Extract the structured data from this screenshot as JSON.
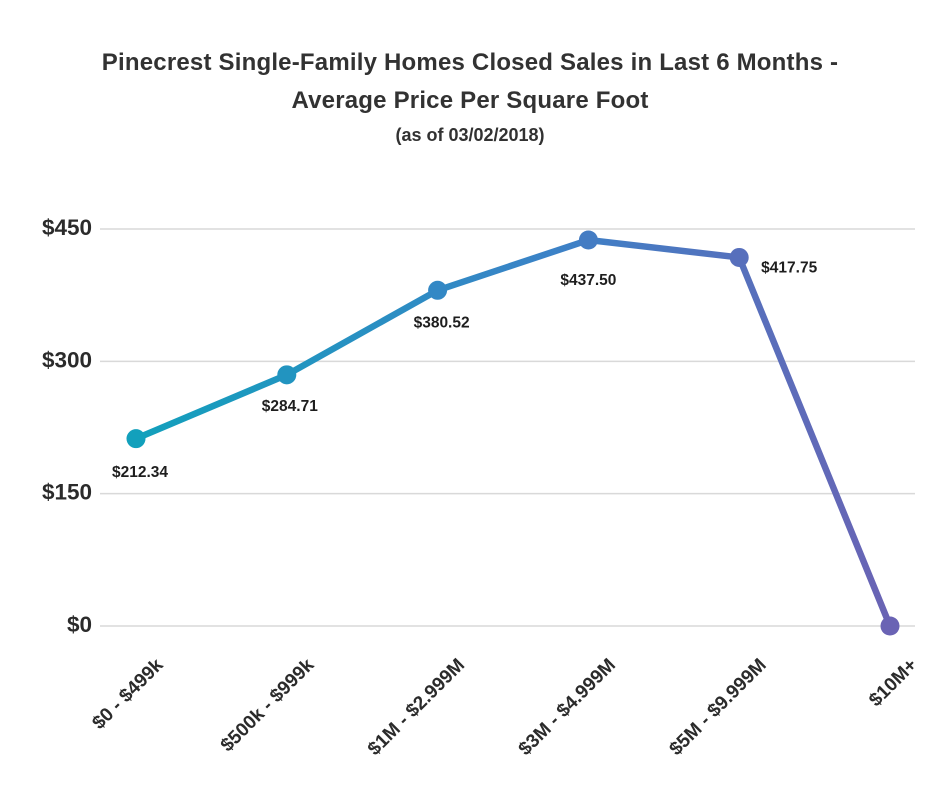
{
  "header": {
    "title_lines": [
      "Pinecrest Single-Family Homes Closed Sales in Last 6 Months -",
      "Average Price Per Square Foot"
    ],
    "subtitle": "(as of 03/02/2018)"
  },
  "chart_data": {
    "type": "line",
    "title": "Pinecrest Single-Family Homes Closed Sales in Last 6 Months - Average Price Per Square Foot",
    "subtitle": "(as of 03/02/2018)",
    "categories": [
      "$0 - $499k",
      "$500k - $999k",
      "$1M - $2.999M",
      "$3M - $4.999M",
      "$5M - $9.999M",
      "$10M+"
    ],
    "series": [
      {
        "name": "Average Price Per Square Foot",
        "values": [
          212.34,
          284.71,
          380.52,
          437.5,
          417.75,
          0
        ]
      }
    ],
    "point_labels": [
      "$212.34",
      "$284.71",
      "$380.52",
      "$437.50",
      "$417.75",
      ""
    ],
    "xlabel": "",
    "ylabel": "",
    "ylim": [
      0,
      450
    ],
    "yticks": [
      0,
      150,
      300,
      450
    ],
    "ytick_labels": [
      "$0",
      "$150",
      "$300",
      "$450"
    ],
    "grid": true,
    "legend_position": "none",
    "colors": {
      "line_gradient_start": "#12a0bc",
      "line_gradient_mid": "#3b82c7",
      "line_gradient_end": "#6a63b4",
      "gridline": "#d9d9d9",
      "text": "#2b2b2b",
      "background": "#ffffff"
    }
  }
}
